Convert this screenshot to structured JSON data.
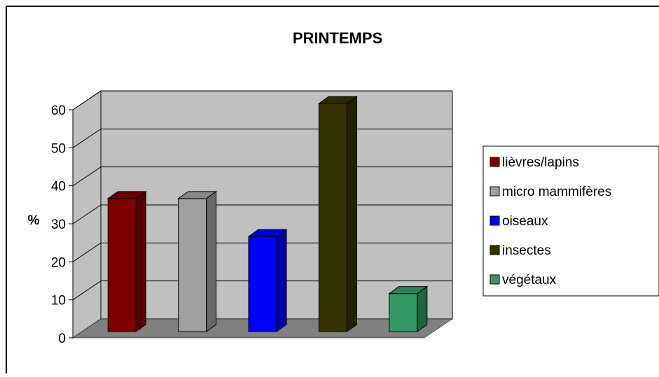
{
  "chart_data": {
    "type": "bar",
    "title": "PRINTEMPS",
    "xlabel": "",
    "ylabel": "%",
    "ylim": [
      0,
      60
    ],
    "yticks": [
      0,
      10,
      20,
      30,
      40,
      50,
      60
    ],
    "grid": true,
    "legend_position": "right",
    "categories": [
      "lièvres/lapins",
      "micro mammifères",
      "oiseaux",
      "insectes",
      "végétaux"
    ],
    "values": [
      35,
      35,
      25,
      60,
      10
    ],
    "colors": [
      "#7f0000",
      "#a0a0a0",
      "#0000ff",
      "#333300",
      "#339966"
    ],
    "wall_color": "#c0c0c0",
    "floor_color": "#808080"
  }
}
